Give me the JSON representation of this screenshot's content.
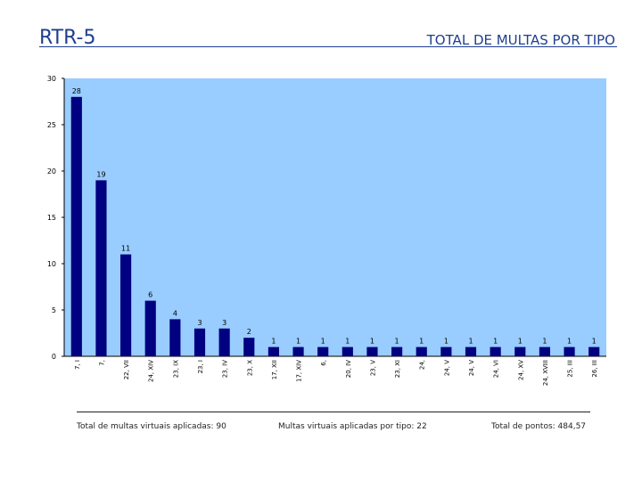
{
  "header": {
    "slide_code": "RTR-5",
    "title": "TOTAL DE MULTAS POR TIPO"
  },
  "chart_data": {
    "type": "bar",
    "title": "TOTAL DE MULTAS POR TIPO",
    "categories": [
      "7, I",
      "7,",
      "22, VII",
      "24, XIV",
      "23, IX",
      "23, I",
      "23, IV",
      "23, X",
      "17, XII",
      "17, XIV",
      "6,",
      "20, IV",
      "23, V",
      "23, XI",
      "24,",
      "24, V",
      "24, V",
      "24, VI",
      "24, XV",
      "24, XVIII",
      "25, III",
      "26, III"
    ],
    "values": [
      28,
      19,
      11,
      6,
      4,
      3,
      3,
      2,
      1,
      1,
      1,
      1,
      1,
      1,
      1,
      1,
      1,
      1,
      1,
      1,
      1,
      1
    ],
    "ylim": [
      0,
      30
    ],
    "yticks": [
      0,
      5,
      10,
      15,
      20,
      25,
      30
    ],
    "xlabel": "",
    "ylabel": "",
    "colors": {
      "plot_bg": "#99ccff",
      "bar": "#000080"
    }
  },
  "footer": {
    "total_virtual": "Total de multas virtuais aplicadas: 90",
    "per_type": "Multas virtuais aplicadas por tipo: 22",
    "total_points": "Total de pontos: 484,57"
  }
}
